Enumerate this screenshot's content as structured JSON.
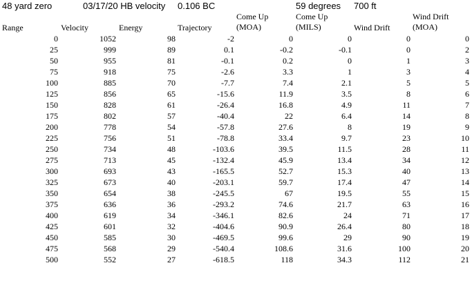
{
  "info": {
    "zero": "48 yard zero",
    "velocity": "03/17/20 HB velocity",
    "bc": "0.106 BC",
    "temperature": "59 degrees",
    "altitude": "700 ft"
  },
  "headers": {
    "range": "Range",
    "velocity": "Velocity",
    "energy": "Energy",
    "trajectory": "Trajectory",
    "come_up_moa": [
      "Come Up",
      "(MOA)"
    ],
    "come_up_mils": [
      "Come Up",
      "(MILS)"
    ],
    "wind_drift": "Wind Drift",
    "wind_drift_moa": [
      "Wind Drift",
      "(MOA)"
    ]
  },
  "rows": [
    [
      "0",
      "1052",
      "98",
      "-2",
      "0",
      "0",
      "0",
      "0"
    ],
    [
      "25",
      "999",
      "89",
      "0.1",
      "-0.2",
      "-0.1",
      "0",
      "2"
    ],
    [
      "50",
      "955",
      "81",
      "-0.1",
      "0.2",
      "0",
      "1",
      "3"
    ],
    [
      "75",
      "918",
      "75",
      "-2.6",
      "3.3",
      "1",
      "3",
      "4"
    ],
    [
      "100",
      "885",
      "70",
      "-7.7",
      "7.4",
      "2.1",
      "5",
      "5"
    ],
    [
      "125",
      "856",
      "65",
      "-15.6",
      "11.9",
      "3.5",
      "8",
      "6"
    ],
    [
      "150",
      "828",
      "61",
      "-26.4",
      "16.8",
      "4.9",
      "11",
      "7"
    ],
    [
      "175",
      "802",
      "57",
      "-40.4",
      "22",
      "6.4",
      "14",
      "8"
    ],
    [
      "200",
      "778",
      "54",
      "-57.8",
      "27.6",
      "8",
      "19",
      "9"
    ],
    [
      "225",
      "756",
      "51",
      "-78.8",
      "33.4",
      "9.7",
      "23",
      "10"
    ],
    [
      "250",
      "734",
      "48",
      "-103.6",
      "39.5",
      "11.5",
      "28",
      "11"
    ],
    [
      "275",
      "713",
      "45",
      "-132.4",
      "45.9",
      "13.4",
      "34",
      "12"
    ],
    [
      "300",
      "693",
      "43",
      "-165.5",
      "52.7",
      "15.3",
      "40",
      "13"
    ],
    [
      "325",
      "673",
      "40",
      "-203.1",
      "59.7",
      "17.4",
      "47",
      "14"
    ],
    [
      "350",
      "654",
      "38",
      "-245.5",
      "67",
      "19.5",
      "55",
      "15"
    ],
    [
      "375",
      "636",
      "36",
      "-293.2",
      "74.6",
      "21.7",
      "63",
      "16"
    ],
    [
      "400",
      "619",
      "34",
      "-346.1",
      "82.6",
      "24",
      "71",
      "17"
    ],
    [
      "425",
      "601",
      "32",
      "-404.6",
      "90.9",
      "26.4",
      "80",
      "18"
    ],
    [
      "450",
      "585",
      "30",
      "-469.5",
      "99.6",
      "29",
      "90",
      "19"
    ],
    [
      "475",
      "568",
      "29",
      "-540.4",
      "108.6",
      "31.6",
      "100",
      "20"
    ],
    [
      "500",
      "552",
      "27",
      "-618.5",
      "118",
      "34.3",
      "112",
      "21"
    ]
  ]
}
